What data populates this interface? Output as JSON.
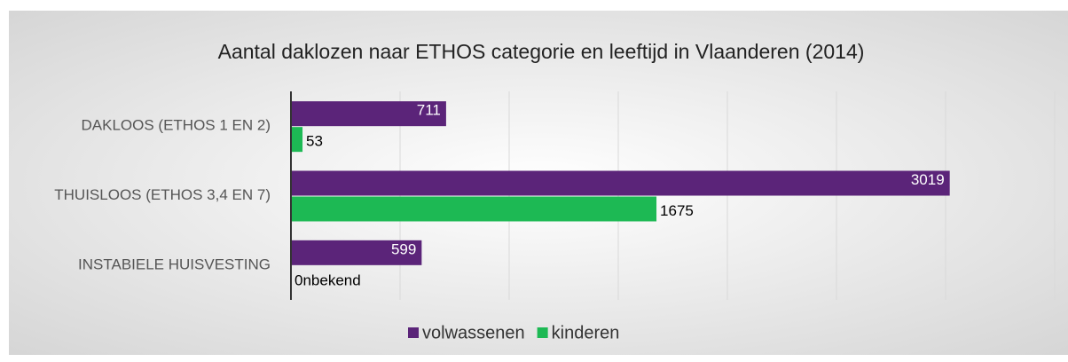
{
  "chart_data": {
    "type": "barh",
    "title": "Aantal daklozen naar ETHOS categorie en leeftijd in Vlaanderen (2014)",
    "categories": [
      "DAKLOOS (ETHOS 1 EN 2)",
      "THUISLOOS (ETHOS 3,4 EN 7)",
      "INSTABIELE HUISVESTING"
    ],
    "series": [
      {
        "name": "volwassenen",
        "color": "#5b2479",
        "values": [
          711,
          3019,
          599
        ]
      },
      {
        "name": "kinderen",
        "color": "#1db954",
        "values": [
          53,
          1675,
          null
        ],
        "value_labels": [
          "53",
          "1675",
          "0nbekend"
        ]
      }
    ],
    "xlim": [
      0,
      3500
    ],
    "xticks": [
      0,
      500,
      1000,
      1500,
      2000,
      2500,
      3000,
      3500
    ],
    "grid": true,
    "legend": "bottom"
  }
}
